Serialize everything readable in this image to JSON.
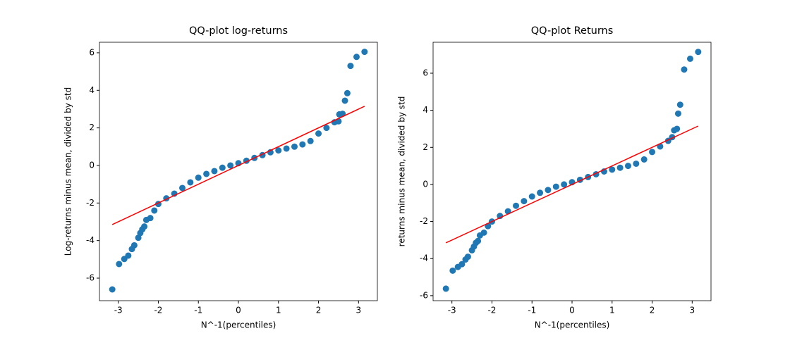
{
  "chart_data": [
    {
      "type": "scatter",
      "title": "QQ-plot log-returns",
      "xlabel": "N^-1(percentiles)",
      "ylabel": "Log-returns minus mean, divided by std",
      "color": "#1f77b4",
      "x": [
        -3.15,
        -2.98,
        -2.85,
        -2.75,
        -2.66,
        -2.6,
        -2.5,
        -2.45,
        -2.4,
        -2.35,
        -2.3,
        -2.2,
        -2.1,
        -2.0,
        -1.8,
        -1.6,
        -1.4,
        -1.2,
        -1.0,
        -0.8,
        -0.6,
        -0.4,
        -0.2,
        0,
        0.2,
        0.4,
        0.6,
        0.8,
        1.0,
        1.2,
        1.4,
        1.6,
        1.8,
        2.0,
        2.2,
        2.4,
        2.5,
        2.52,
        2.6,
        2.66,
        2.72,
        2.8,
        2.95,
        3.15
      ],
      "values": [
        -6.6,
        -5.25,
        -4.98,
        -4.8,
        -4.45,
        -4.25,
        -3.85,
        -3.6,
        -3.4,
        -3.25,
        -2.9,
        -2.8,
        -2.4,
        -2.05,
        -1.75,
        -1.5,
        -1.2,
        -0.9,
        -0.65,
        -0.45,
        -0.3,
        -0.12,
        0.0,
        0.12,
        0.25,
        0.4,
        0.55,
        0.7,
        0.8,
        0.9,
        1.0,
        1.12,
        1.3,
        1.7,
        2.0,
        2.3,
        2.35,
        2.72,
        2.75,
        3.45,
        3.85,
        5.3,
        5.78,
        6.05
      ],
      "fit_line": {
        "color": "#ff0000",
        "x": [
          -3.15,
          3.15
        ],
        "values": [
          -3.15,
          3.15
        ]
      },
      "xlim": [
        -3.47,
        3.47
      ],
      "ylim": [
        -7.2,
        6.56
      ],
      "xticks": [
        -3,
        -2,
        -1,
        0,
        1,
        2,
        3
      ],
      "yticks": [
        -6,
        -4,
        -2,
        0,
        2,
        4,
        6
      ]
    },
    {
      "type": "scatter",
      "title": "QQ-plot Returns",
      "xlabel": "N^-1(percentiles)",
      "ylabel": "returns minus mean, divided by std",
      "color": "#1f77b4",
      "x": [
        -3.15,
        -2.98,
        -2.85,
        -2.75,
        -2.66,
        -2.6,
        -2.5,
        -2.45,
        -2.4,
        -2.35,
        -2.3,
        -2.2,
        -2.1,
        -2.0,
        -1.8,
        -1.6,
        -1.4,
        -1.2,
        -1.0,
        -0.8,
        -0.6,
        -0.4,
        -0.2,
        0,
        0.2,
        0.4,
        0.6,
        0.8,
        1.0,
        1.2,
        1.4,
        1.6,
        1.8,
        2.0,
        2.2,
        2.4,
        2.5,
        2.55,
        2.62,
        2.65,
        2.7,
        2.8,
        2.95,
        3.15
      ],
      "values": [
        -5.62,
        -4.65,
        -4.45,
        -4.3,
        -4.05,
        -3.9,
        -3.55,
        -3.35,
        -3.15,
        -3.05,
        -2.75,
        -2.6,
        -2.25,
        -2.0,
        -1.7,
        -1.45,
        -1.15,
        -0.9,
        -0.65,
        -0.45,
        -0.3,
        -0.12,
        0.0,
        0.12,
        0.25,
        0.4,
        0.55,
        0.7,
        0.8,
        0.9,
        1.0,
        1.12,
        1.35,
        1.75,
        2.05,
        2.35,
        2.55,
        2.92,
        3.0,
        3.82,
        4.3,
        6.2,
        6.78,
        7.15
      ],
      "fit_line": {
        "color": "#ff0000",
        "x": [
          -3.15,
          3.15
        ],
        "values": [
          -3.15,
          3.15
        ]
      },
      "xlim": [
        -3.47,
        3.47
      ],
      "ylim": [
        -6.27,
        7.67
      ],
      "xticks": [
        -3,
        -2,
        -1,
        0,
        1,
        2,
        3
      ],
      "yticks": [
        -6,
        -4,
        -2,
        0,
        2,
        4,
        6
      ]
    }
  ]
}
